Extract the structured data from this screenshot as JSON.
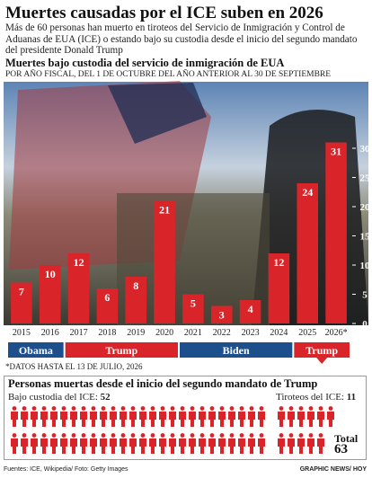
{
  "title": "Muertes causadas por el ICE suben en 2026",
  "subtitle": "Más de 60 personas han muerto en tiroteos del Servicio de Inmigración y Control de Aduanas de EUA (ICE) o estando bajo su custodia desde el inicio del segundo mandato del presidente Donald Trump",
  "chart_data": {
    "type": "bar",
    "title": "Muertes bajo custodia del servicio de inmigración de EUA",
    "subtitle": "POR AÑO FISCAL, DEL 1 DE OCTUBRE DEL AÑO ANTERIOR AL 30 DE SEPTIEMBRE",
    "categories": [
      "2015",
      "2016",
      "2017",
      "2018",
      "2019",
      "2020",
      "2021",
      "2022",
      "2023",
      "2024",
      "2025",
      "2026*"
    ],
    "values": [
      7,
      10,
      12,
      6,
      8,
      21,
      5,
      3,
      4,
      12,
      24,
      31
    ],
    "color": "#d9252a",
    "ylim": [
      0,
      32
    ],
    "yticks": [
      0,
      5,
      10,
      15,
      20,
      25,
      30
    ],
    "administrations": [
      "Obama",
      "Trump",
      "Biden",
      "Trump"
    ],
    "administration_colors": [
      "#1c4f8c",
      "#d9252a",
      "#1c4f8c",
      "#d9252a"
    ],
    "note": "*DATOS HASTA EL 13 DE JULIO, 2026"
  },
  "summary": {
    "title": "Personas muertas desde el inicio del segundo mandato de Trump",
    "groups": [
      {
        "label": "Bajo custodia del ICE:",
        "value": 52
      },
      {
        "label": "Tiroteos del ICE:",
        "value": 11
      }
    ],
    "total_label": "Total",
    "total": 63,
    "color": "#d9252a"
  },
  "footer": {
    "sources": "Fuentes: ICE, Wikipedia/ Foto: Getty Images",
    "credit": "GRAPHIC NEWS/ HOY"
  }
}
